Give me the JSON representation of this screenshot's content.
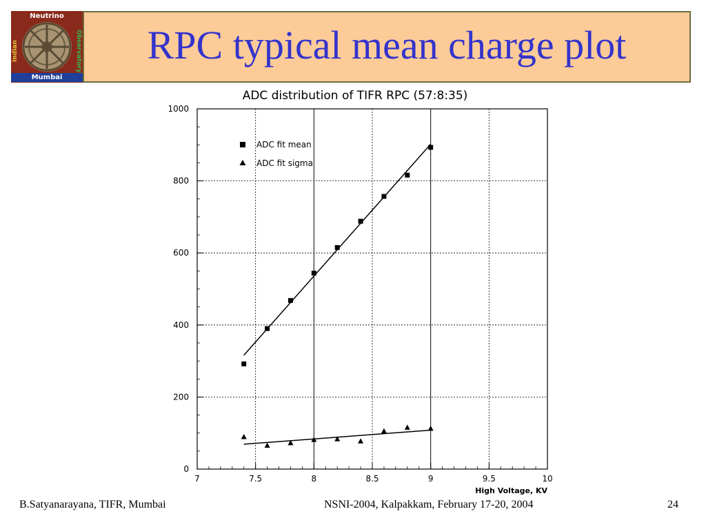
{
  "slide": {
    "title": "RPC typical mean charge plot",
    "logo": {
      "top_text": "Neutrino",
      "bottom_text": "Mumbai",
      "left_text": "Indian",
      "right_text": "Observatory",
      "icon": "wheel-icon"
    },
    "footer": {
      "left": "B.Satyanarayana, TIFR, Mumbai",
      "center": "NSNI-2004, Kalpakkam, February 17-20, 2004",
      "page": "24"
    },
    "colors": {
      "title": "#3333cc",
      "title_box": "#fccb98",
      "title_border": "#6b6b3a"
    }
  },
  "chart_data": {
    "type": "scatter",
    "title": "ADC distribution of TIFR RPC (57:8:35)",
    "xlabel": "High Voltage, KV",
    "ylabel": "",
    "xlim": [
      7,
      10
    ],
    "ylim": [
      0,
      1000
    ],
    "grid": true,
    "legend_position": "top-left",
    "x_ticks": [
      {
        "value": 7,
        "label": "7"
      },
      {
        "value": 7.5,
        "label": "7.5"
      },
      {
        "value": 8,
        "label": "8"
      },
      {
        "value": 8.5,
        "label": "8.5"
      },
      {
        "value": 9,
        "label": "9"
      },
      {
        "value": 9.5,
        "label": "9.5"
      },
      {
        "value": 10,
        "label": "10"
      }
    ],
    "y_ticks": [
      {
        "value": 0,
        "label": "0"
      },
      {
        "value": 200,
        "label": "200"
      },
      {
        "value": 400,
        "label": "400"
      },
      {
        "value": 600,
        "label": "600"
      },
      {
        "value": 800,
        "label": "800"
      },
      {
        "value": 1000,
        "label": "1000"
      }
    ],
    "series": [
      {
        "name": "ADC fit mean",
        "marker": "square",
        "x": [
          7.4,
          7.6,
          7.8,
          8.0,
          8.2,
          8.4,
          8.6,
          8.8,
          9.0
        ],
        "y": [
          292,
          390,
          468,
          544,
          615,
          688,
          757,
          816,
          893
        ],
        "fit_line": {
          "x": [
            7.4,
            9.0
          ],
          "y": [
            316,
            902
          ]
        }
      },
      {
        "name": "ADC fit sigma",
        "marker": "triangle",
        "x": [
          7.4,
          7.6,
          7.8,
          8.0,
          8.2,
          8.4,
          8.6,
          8.8,
          9.0
        ],
        "y": [
          89,
          65,
          72,
          81,
          83,
          77,
          105,
          115,
          112
        ],
        "fit_line": {
          "x": [
            7.4,
            9.0
          ],
          "y": [
            69,
            108
          ]
        }
      }
    ]
  }
}
